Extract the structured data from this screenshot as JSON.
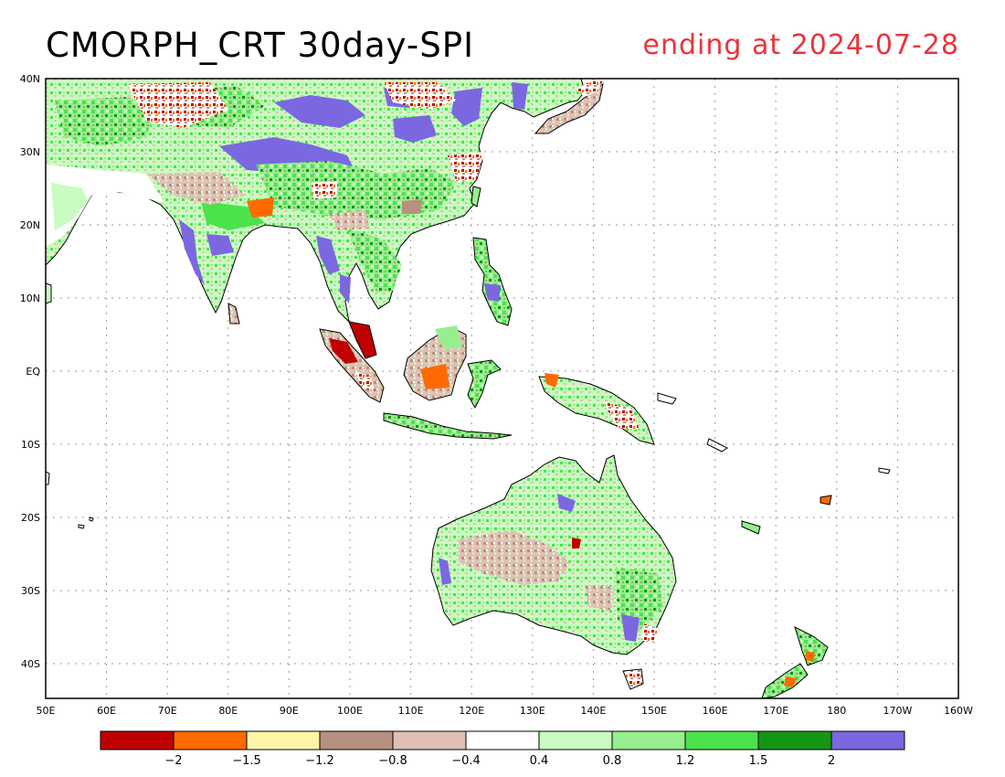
{
  "title": {
    "left": "CMORPH_CRT 30day-SPI",
    "right": "ending at 2024-07-28",
    "right_color": "#e8343c"
  },
  "map": {
    "lon_labels": [
      "50E",
      "60E",
      "70E",
      "80E",
      "90E",
      "100E",
      "110E",
      "120E",
      "130E",
      "140E",
      "150E",
      "160E",
      "170E",
      "180",
      "170W",
      "160W"
    ],
    "lat_labels": [
      "40N",
      "30N",
      "20N",
      "10N",
      "EQ",
      "10S",
      "20S",
      "30S",
      "40S"
    ],
    "grid": "dotted"
  },
  "colorbar": {
    "colors": [
      "#c00000",
      "#ff6a00",
      "#fff5a8",
      "#b8907e",
      "#e0c0b4",
      "#ffffff",
      "#c8fcc0",
      "#96ee8e",
      "#4ce24c",
      "#149614",
      "#7b68e0"
    ],
    "labels": [
      "-2",
      "-1.5",
      "-1.2",
      "-0.8",
      "-0.4",
      "0.4",
      "0.8",
      "1.2",
      "1.5",
      "2"
    ]
  }
}
